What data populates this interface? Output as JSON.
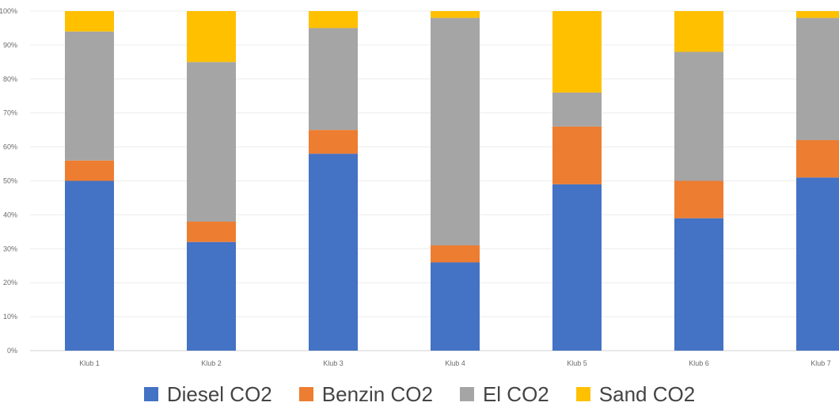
{
  "chart_data": {
    "type": "bar",
    "stacked": true,
    "categories": [
      "Klub 1",
      "Klub 2",
      "Klub 3",
      "Klub 4",
      "Klub 5",
      "Klub 6",
      "Klub 7"
    ],
    "series": [
      {
        "name": "Diesel CO2",
        "color": "#4472c4",
        "values": [
          50,
          32,
          58,
          26,
          49,
          39,
          51
        ]
      },
      {
        "name": "Benzin CO2",
        "color": "#ed7d31",
        "values": [
          6,
          6,
          7,
          5,
          17,
          11,
          11
        ]
      },
      {
        "name": "El CO2",
        "color": "#a5a5a5",
        "values": [
          38,
          47,
          30,
          67,
          10,
          38,
          36
        ]
      },
      {
        "name": "Sand CO2",
        "color": "#ffc000",
        "values": [
          6,
          15,
          5,
          2,
          24,
          12,
          2
        ]
      }
    ],
    "ylim": [
      0,
      100
    ],
    "yticks": [
      "0%",
      "10%",
      "20%",
      "30%",
      "40%",
      "50%",
      "60%",
      "70%",
      "80%",
      "90%",
      "100%"
    ],
    "grid": true,
    "legend_position": "bottom"
  }
}
